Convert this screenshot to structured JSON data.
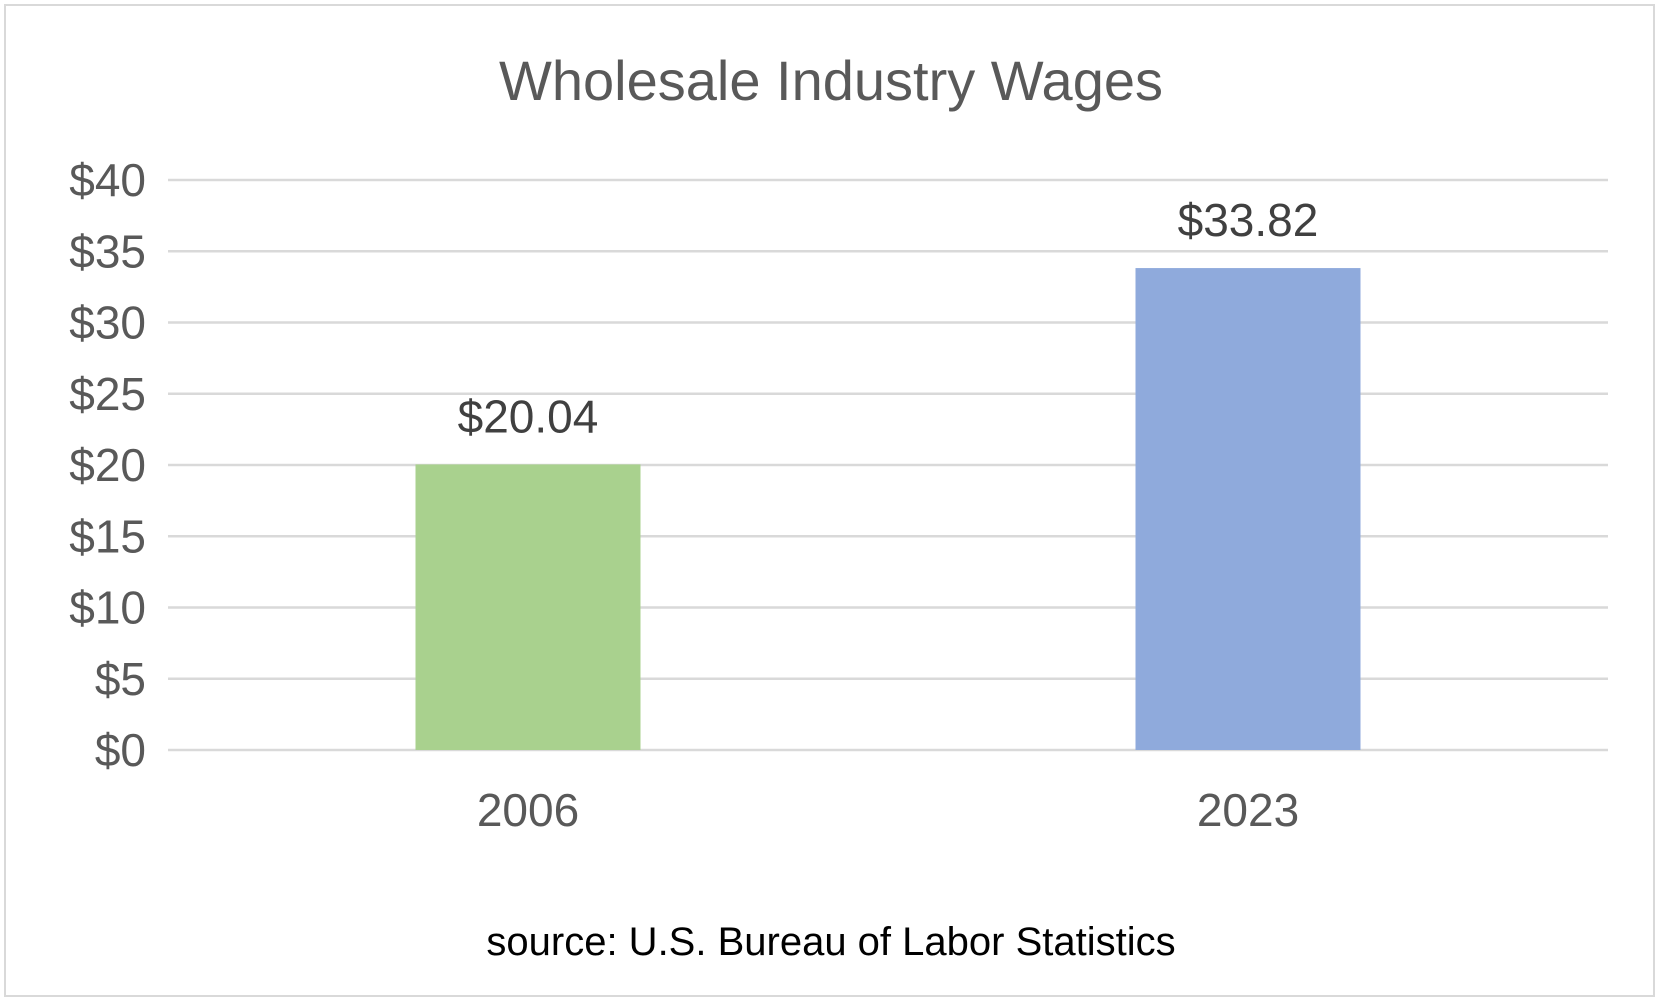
{
  "chart_data": {
    "type": "bar",
    "title": "Wholesale Industry Wages",
    "categories": [
      "2006",
      "2023"
    ],
    "values": [
      20.04,
      33.82
    ],
    "data_labels": [
      "$20.04",
      "$33.82"
    ],
    "bar_colors": [
      "#a9d18e",
      "#8faadc"
    ],
    "ylim": [
      0,
      40
    ],
    "yticks": [
      0,
      5,
      10,
      15,
      20,
      25,
      30,
      35,
      40
    ],
    "ytick_labels": [
      "$0",
      "$5",
      "$10",
      "$15",
      "$20",
      "$25",
      "$30",
      "$35",
      "$40"
    ],
    "grid": true,
    "legend": "none",
    "xlabel": "",
    "ylabel": "",
    "source": "source: U.S. Bureau of Labor Statistics"
  }
}
